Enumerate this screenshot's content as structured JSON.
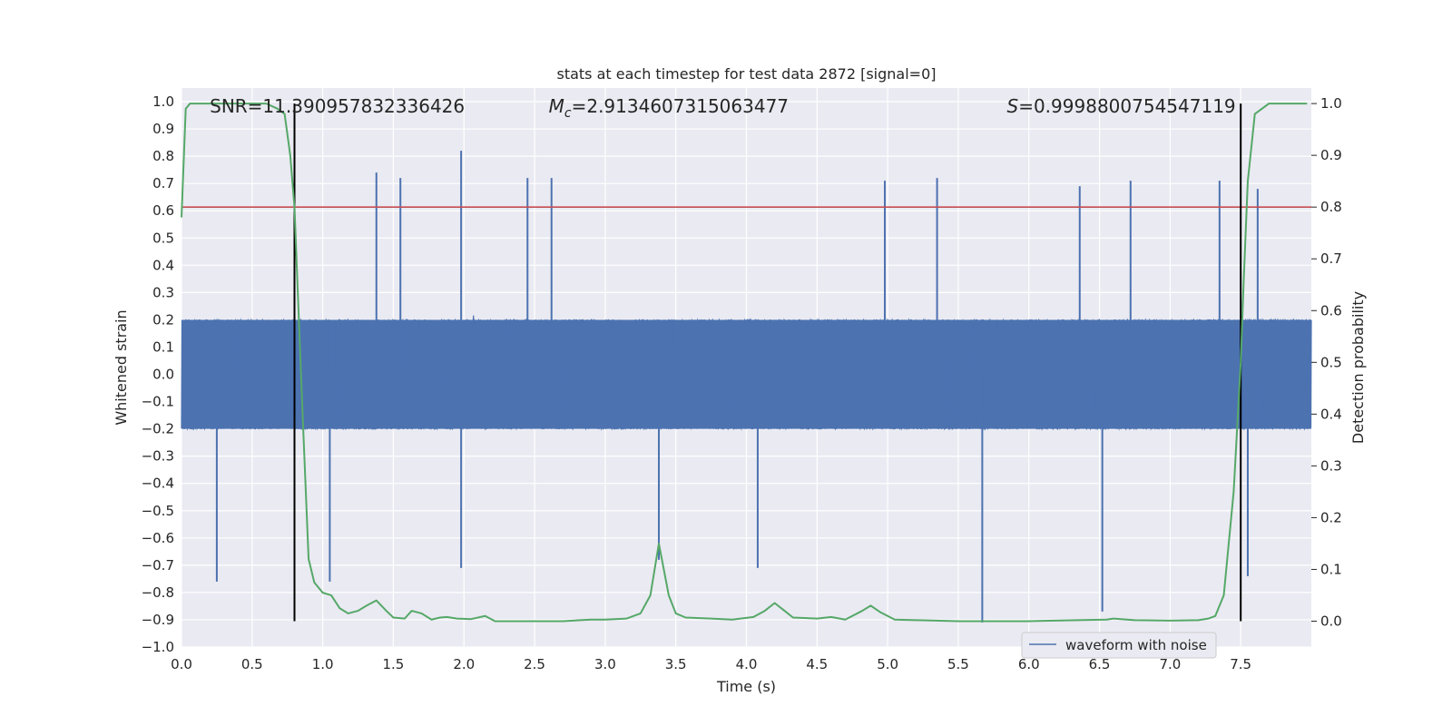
{
  "chart_data": {
    "type": "line",
    "title": "stats at each timestep for test data 2872 [signal=0]",
    "xlabel": "Time (s)",
    "ylabel": "Whitened strain",
    "y2label": "Detection probability",
    "xlim": [
      0.0,
      8.0
    ],
    "ylim": [
      -1.0,
      1.05
    ],
    "y2lim": [
      -0.05,
      1.03
    ],
    "xticks": [
      "0.0",
      "0.5",
      "1.0",
      "1.5",
      "2.0",
      "2.5",
      "3.0",
      "3.5",
      "4.0",
      "4.5",
      "5.0",
      "5.5",
      "6.0",
      "6.5",
      "7.0",
      "7.5"
    ],
    "yticks": [
      "1.0",
      "0.9",
      "0.8",
      "0.7",
      "0.6",
      "0.5",
      "0.4",
      "0.3",
      "0.2",
      "0.1",
      "0.0",
      "−0.1",
      "−0.2",
      "−0.3",
      "−0.4",
      "−0.5",
      "−0.6",
      "−0.7",
      "−0.8",
      "−0.9",
      "−1.0"
    ],
    "y2ticks": [
      "1.0",
      "0.9",
      "0.8",
      "0.7",
      "0.6",
      "0.5",
      "0.4",
      "0.3",
      "0.2",
      "0.1",
      "0.0"
    ],
    "grid": true,
    "legend_placement": "lower-right",
    "annotations": [
      {
        "text": "SNR=11.390957832336426",
        "x": 0.2,
        "y": 0.98
      },
      {
        "mc_symbol": "M",
        "mc_sub": "c",
        "text": "=2.9134607315063477",
        "x": 2.6,
        "y": 0.98
      },
      {
        "s_symbol": "S",
        "text": "=0.9998800754547119",
        "x": 5.6,
        "y": 0.98
      }
    ],
    "series": [
      {
        "name": "waveform with noise",
        "kind": "noise-band",
        "color": "#4c72b0",
        "core_band": [
          -0.2,
          0.2
        ],
        "typical_max": 0.5,
        "notable_peaks": [
          {
            "x": 1.38,
            "y": 0.74
          },
          {
            "x": 1.55,
            "y": 0.72
          },
          {
            "x": 1.98,
            "y": 0.82
          },
          {
            "x": 2.45,
            "y": 0.72
          },
          {
            "x": 2.62,
            "y": 0.72
          },
          {
            "x": 4.98,
            "y": 0.71
          },
          {
            "x": 5.35,
            "y": 0.72
          },
          {
            "x": 6.36,
            "y": 0.69
          },
          {
            "x": 6.72,
            "y": 0.71
          },
          {
            "x": 7.35,
            "y": 0.71
          },
          {
            "x": 7.62,
            "y": 0.68
          }
        ],
        "notable_troughs": [
          {
            "x": 0.25,
            "y": -0.76
          },
          {
            "x": 1.05,
            "y": -0.76
          },
          {
            "x": 1.98,
            "y": -0.71
          },
          {
            "x": 3.38,
            "y": -0.68
          },
          {
            "x": 4.08,
            "y": -0.71
          },
          {
            "x": 5.67,
            "y": -0.91
          },
          {
            "x": 6.52,
            "y": -0.87
          },
          {
            "x": 7.55,
            "y": -0.74
          }
        ]
      },
      {
        "name": "",
        "kind": "probability",
        "axis": "right",
        "color": "#55a868",
        "x": [
          0.0,
          0.03,
          0.06,
          0.12,
          0.25,
          0.45,
          0.6,
          0.68,
          0.73,
          0.77,
          0.8,
          0.85,
          0.9,
          0.94,
          1.0,
          1.06,
          1.12,
          1.18,
          1.25,
          1.31,
          1.38,
          1.45,
          1.5,
          1.58,
          1.63,
          1.7,
          1.77,
          1.83,
          1.88,
          1.95,
          2.05,
          2.15,
          2.22,
          2.32,
          2.5,
          2.7,
          2.9,
          3.0,
          3.15,
          3.25,
          3.32,
          3.38,
          3.45,
          3.5,
          3.57,
          3.75,
          3.9,
          4.05,
          4.13,
          4.2,
          4.27,
          4.33,
          4.5,
          4.6,
          4.7,
          4.82,
          4.88,
          4.95,
          5.05,
          5.2,
          5.5,
          6.0,
          6.55,
          6.6,
          6.75,
          7.0,
          7.2,
          7.27,
          7.32,
          7.38,
          7.45,
          7.5,
          7.52,
          7.55,
          7.6,
          7.7,
          7.85,
          7.97
        ],
        "y": [
          0.78,
          0.99,
          1.0,
          1.0,
          1.0,
          1.0,
          1.0,
          0.99,
          0.98,
          0.9,
          0.8,
          0.45,
          0.12,
          0.075,
          0.055,
          0.05,
          0.025,
          0.015,
          0.02,
          0.03,
          0.04,
          0.02,
          0.007,
          0.005,
          0.02,
          0.015,
          0.003,
          0.007,
          0.008,
          0.005,
          0.004,
          0.01,
          0.0,
          0.0,
          0.0,
          0.0,
          0.003,
          0.003,
          0.005,
          0.015,
          0.05,
          0.15,
          0.05,
          0.015,
          0.007,
          0.005,
          0.003,
          0.008,
          0.02,
          0.035,
          0.02,
          0.007,
          0.005,
          0.008,
          0.003,
          0.02,
          0.03,
          0.017,
          0.003,
          0.002,
          0.0,
          0.0,
          0.003,
          0.005,
          0.002,
          0.001,
          0.002,
          0.005,
          0.01,
          0.05,
          0.25,
          0.5,
          0.65,
          0.85,
          0.98,
          1.0,
          1.0,
          1.0
        ]
      }
    ],
    "hlines": [
      {
        "y": 0.8,
        "color": "#c44e52"
      }
    ],
    "vlines": [
      {
        "x": 0.8,
        "color": "#000000"
      },
      {
        "x": 7.5,
        "color": "#000000"
      }
    ]
  }
}
